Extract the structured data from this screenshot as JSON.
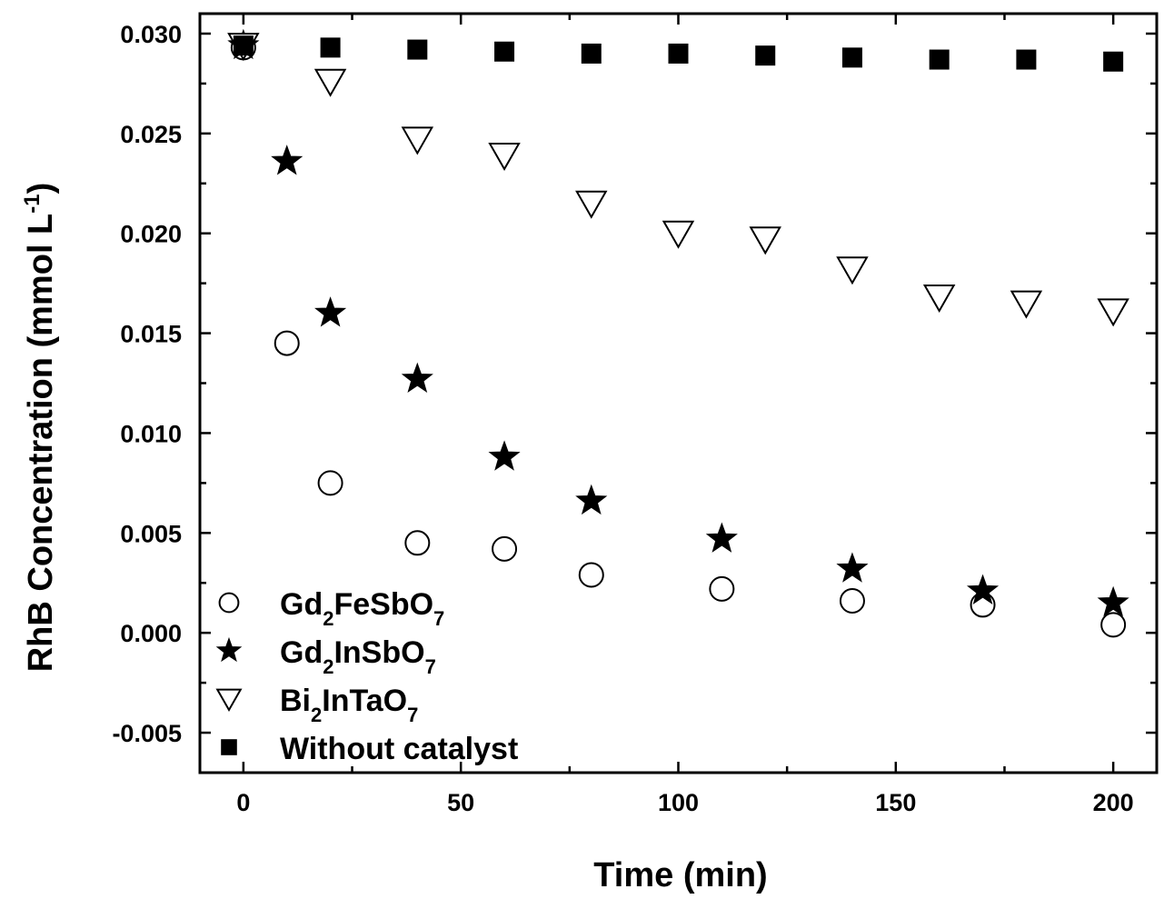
{
  "chart_data": {
    "type": "scatter",
    "xlabel": "Time (min)",
    "ylabel": "RhB Concentration (mmol L",
    "ylabel_sup": "-1",
    "ylabel_close": ")",
    "xlim": [
      -10,
      210
    ],
    "ylim": [
      -0.007,
      0.031
    ],
    "xticks": [
      0,
      50,
      100,
      150,
      200
    ],
    "xtick_labels": [
      "0",
      "50",
      "100",
      "150",
      "200"
    ],
    "yticks": [
      -0.005,
      0.0,
      0.005,
      0.01,
      0.015,
      0.02,
      0.025,
      0.03
    ],
    "ytick_labels": [
      "-0.005",
      "0.000",
      "0.005",
      "0.010",
      "0.015",
      "0.020",
      "0.025",
      "0.030"
    ],
    "legend_position": "bottom-left",
    "series": [
      {
        "name": "Gd2FeSbO7",
        "legend_parts": [
          [
            "Gd",
            false
          ],
          [
            "2",
            true
          ],
          [
            "FeSbO",
            false
          ],
          [
            "7",
            true
          ]
        ],
        "marker": "open-circle",
        "x": [
          0,
          10,
          20,
          40,
          60,
          80,
          110,
          140,
          170,
          200
        ],
        "y": [
          0.0293,
          0.0145,
          0.0075,
          0.0045,
          0.0042,
          0.0029,
          0.0022,
          0.0016,
          0.0014,
          0.0004
        ]
      },
      {
        "name": "Gd2InSbO7",
        "legend_parts": [
          [
            "Gd",
            false
          ],
          [
            "2",
            true
          ],
          [
            "InSbO",
            false
          ],
          [
            "7",
            true
          ]
        ],
        "marker": "star",
        "x": [
          0,
          10,
          20,
          40,
          60,
          80,
          110,
          140,
          170,
          200
        ],
        "y": [
          0.0294,
          0.0236,
          0.016,
          0.0127,
          0.0088,
          0.0066,
          0.0047,
          0.0032,
          0.0021,
          0.0015
        ]
      },
      {
        "name": "Bi2InTaO7",
        "legend_parts": [
          [
            "Bi",
            false
          ],
          [
            "2",
            true
          ],
          [
            "InTaO",
            false
          ],
          [
            "7",
            true
          ]
        ],
        "marker": "open-down-triangle",
        "x": [
          0,
          20,
          40,
          60,
          80,
          100,
          120,
          140,
          160,
          180,
          200
        ],
        "y": [
          0.0294,
          0.0276,
          0.0247,
          0.0239,
          0.0215,
          0.02,
          0.0197,
          0.0182,
          0.0168,
          0.0165,
          0.0161
        ]
      },
      {
        "name": "Without catalyst",
        "legend_parts": [
          [
            "Without catalyst",
            false
          ]
        ],
        "marker": "filled-square",
        "x": [
          0,
          20,
          40,
          60,
          80,
          100,
          120,
          140,
          160,
          180,
          200
        ],
        "y": [
          0.0294,
          0.0293,
          0.0292,
          0.0291,
          0.029,
          0.029,
          0.0289,
          0.0288,
          0.0287,
          0.0287,
          0.0286
        ]
      }
    ]
  }
}
